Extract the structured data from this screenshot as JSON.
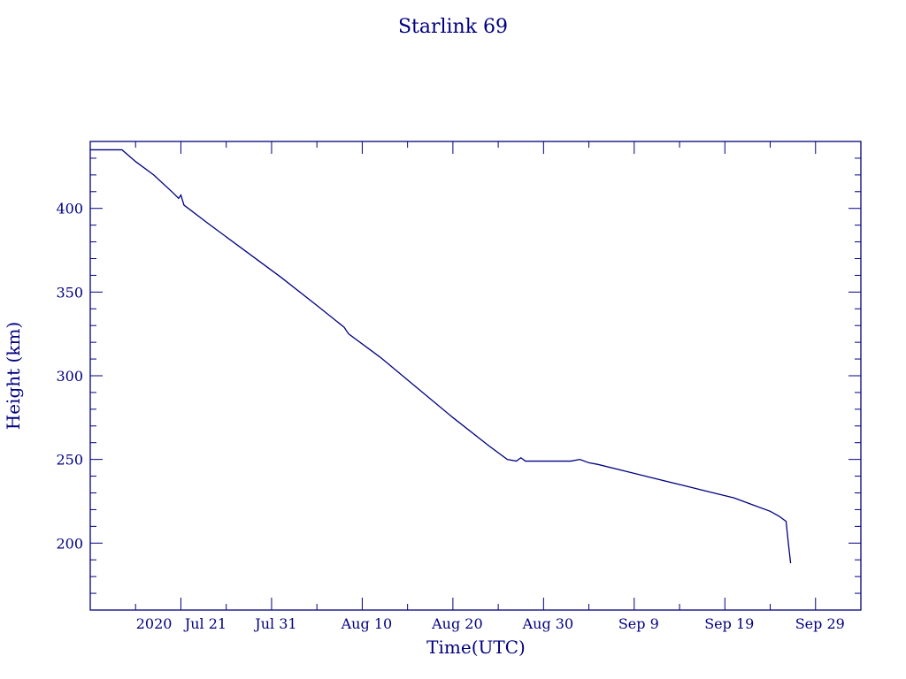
{
  "chart_data": {
    "type": "line",
    "title": "Starlink 69",
    "xlabel": "Time(UTC)",
    "ylabel": "Height (km)",
    "color": "#000080",
    "xlim": [
      "2020-07-11",
      "2020-10-04"
    ],
    "ylim": [
      160,
      440
    ],
    "x_ticks": [
      {
        "date": "2020-07-21",
        "label": "2020 Jul 21"
      },
      {
        "date": "2020-07-31",
        "label": "Jul 31"
      },
      {
        "date": "2020-08-10",
        "label": "Aug 10"
      },
      {
        "date": "2020-08-20",
        "label": "Aug 20"
      },
      {
        "date": "2020-08-30",
        "label": "Aug 30"
      },
      {
        "date": "2020-09-09",
        "label": "Sep  9"
      },
      {
        "date": "2020-09-19",
        "label": "Sep 19"
      },
      {
        "date": "2020-09-29",
        "label": "Sep 29"
      }
    ],
    "y_ticks": [
      200,
      250,
      300,
      350,
      400
    ],
    "grid": false,
    "series": [
      {
        "values": [
          [
            "2020-07-11",
            435
          ],
          [
            "2020-07-12",
            435
          ],
          [
            "2020-07-13",
            435
          ],
          [
            "2020-07-14",
            435
          ],
          [
            "2020-07-14T12:00",
            435
          ],
          [
            "2020-07-16",
            428
          ],
          [
            "2020-07-18",
            420
          ],
          [
            "2020-07-20",
            410
          ],
          [
            "2020-07-20T18:00",
            406
          ],
          [
            "2020-07-21",
            408
          ],
          [
            "2020-07-21T08:00",
            402
          ],
          [
            "2020-07-24",
            391
          ],
          [
            "2020-07-28",
            375
          ],
          [
            "2020-08-01",
            359
          ],
          [
            "2020-08-05",
            342
          ],
          [
            "2020-08-08",
            329
          ],
          [
            "2020-08-08T12:00",
            325
          ],
          [
            "2020-08-12",
            311
          ],
          [
            "2020-08-16",
            293
          ],
          [
            "2020-08-20",
            275
          ],
          [
            "2020-08-24",
            258
          ],
          [
            "2020-08-26",
            250
          ],
          [
            "2020-08-27",
            249
          ],
          [
            "2020-08-27T12:00",
            251
          ],
          [
            "2020-08-28",
            249
          ],
          [
            "2020-08-29",
            249
          ],
          [
            "2020-08-31",
            249
          ],
          [
            "2020-09-02",
            249
          ],
          [
            "2020-09-03",
            250
          ],
          [
            "2020-09-04",
            248
          ],
          [
            "2020-09-05",
            247
          ],
          [
            "2020-09-08",
            243
          ],
          [
            "2020-09-11",
            239
          ],
          [
            "2020-09-14",
            235
          ],
          [
            "2020-09-17",
            231
          ],
          [
            "2020-09-20",
            227
          ],
          [
            "2020-09-22",
            223
          ],
          [
            "2020-09-24",
            219
          ],
          [
            "2020-09-25",
            216
          ],
          [
            "2020-09-25T18:00",
            213
          ],
          [
            "2020-09-26",
            200
          ],
          [
            "2020-09-26T06:00",
            188
          ]
        ]
      }
    ]
  }
}
